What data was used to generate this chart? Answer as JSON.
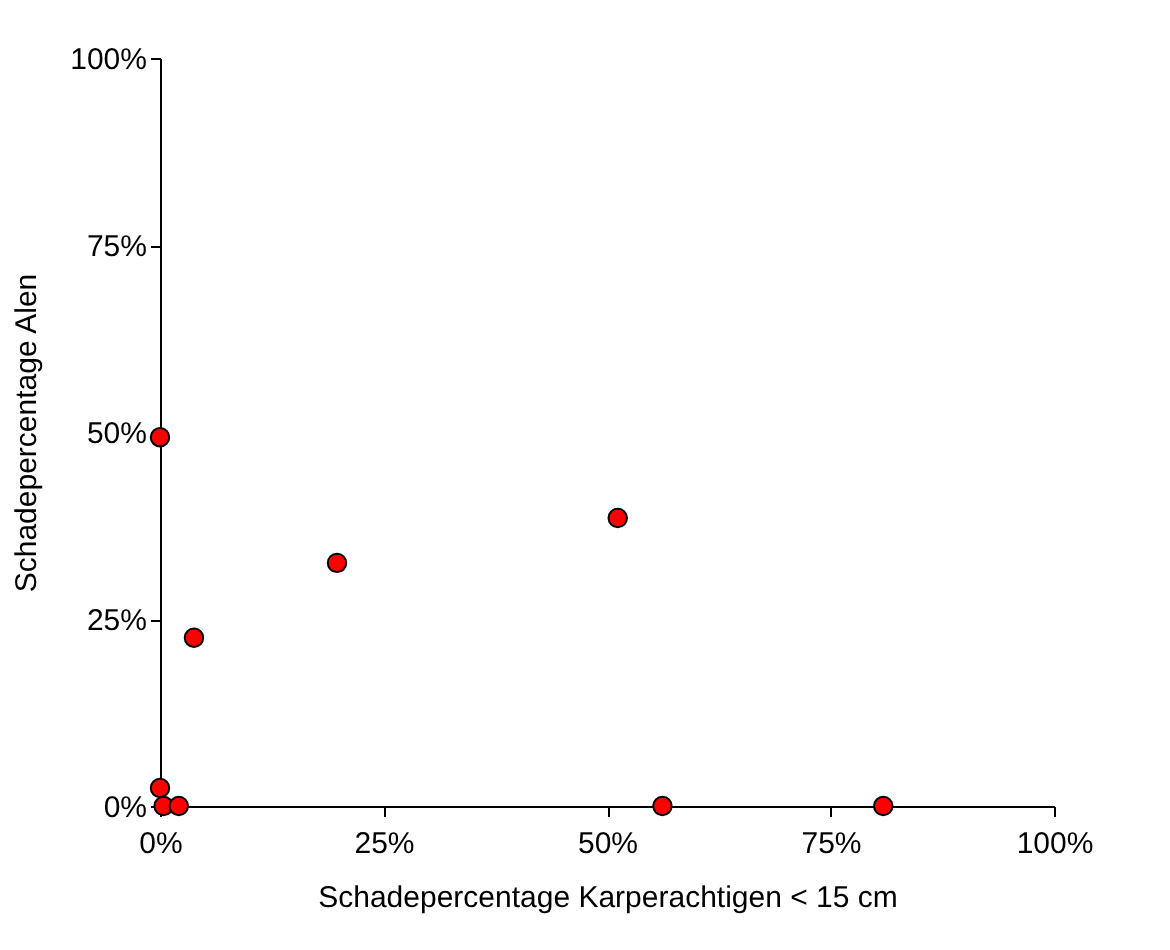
{
  "chart_data": {
    "type": "scatter",
    "xlabel": "Schadepercentage Karperachtigen < 15 cm",
    "ylabel": "Schadepercentage Alen",
    "x": [
      0,
      0,
      0.4,
      2.1,
      3.8,
      19.8,
      51.2,
      56.2,
      80.9
    ],
    "series": [
      {
        "color": "#ff0000",
        "values": [
          49.3,
          2.4,
          0,
          0,
          22.5,
          32.5,
          38.5,
          0,
          0
        ]
      }
    ],
    "xlim": [
      0,
      100
    ],
    "ylim": [
      0,
      100
    ],
    "xticks": [
      {
        "value": 0,
        "label": "0%"
      },
      {
        "value": 25,
        "label": "25%"
      },
      {
        "value": 50,
        "label": "50%"
      },
      {
        "value": 75,
        "label": "75%"
      },
      {
        "value": 100,
        "label": "100%"
      }
    ],
    "yticks": [
      {
        "value": 0,
        "label": "0%"
      },
      {
        "value": 25,
        "label": "25%"
      },
      {
        "value": 50,
        "label": "50%"
      },
      {
        "value": 75,
        "label": "75%"
      },
      {
        "value": 100,
        "label": "100%"
      }
    ],
    "grid": false,
    "legend": false,
    "marker": "circle"
  }
}
